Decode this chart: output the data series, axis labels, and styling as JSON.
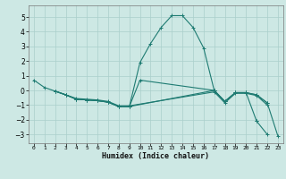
{
  "title": "",
  "xlabel": "Humidex (Indice chaleur)",
  "ylabel": "",
  "background_color": "#cde8e4",
  "grid_color": "#aacfcb",
  "line_color": "#1e7b72",
  "xlim": [
    -0.5,
    23.5
  ],
  "ylim": [
    -3.6,
    5.8
  ],
  "xticks": [
    0,
    1,
    2,
    3,
    4,
    5,
    6,
    7,
    8,
    9,
    10,
    11,
    12,
    13,
    14,
    15,
    16,
    17,
    18,
    19,
    20,
    21,
    22,
    23
  ],
  "yticks": [
    -3,
    -2,
    -1,
    0,
    1,
    2,
    3,
    4,
    5
  ],
  "lines": [
    {
      "x": [
        0,
        1,
        2,
        3,
        4,
        5,
        6,
        7,
        8,
        9,
        10,
        11,
        12,
        13,
        14,
        15,
        16,
        17,
        18,
        19,
        20,
        21
      ],
      "y": [
        0.7,
        0.2,
        -0.05,
        -0.3,
        -0.6,
        -0.65,
        -0.7,
        -0.8,
        -1.1,
        -1.1,
        1.9,
        3.2,
        4.3,
        5.1,
        5.1,
        4.3,
        2.9,
        0.0,
        -0.75,
        -0.15,
        -0.15,
        -2.1
      ]
    },
    {
      "x": [
        21,
        22
      ],
      "y": [
        -2.1,
        -3.0
      ]
    },
    {
      "x": [
        2,
        3,
        4,
        5,
        6,
        7,
        8,
        9,
        10,
        17,
        18,
        19,
        20,
        21,
        22,
        23
      ],
      "y": [
        -0.05,
        -0.3,
        -0.6,
        -0.65,
        -0.7,
        -0.8,
        -1.1,
        -1.1,
        0.7,
        0.0,
        -0.75,
        -0.15,
        -0.15,
        -0.3,
        -0.85,
        -3.1
      ]
    },
    {
      "x": [
        2,
        3,
        4,
        5,
        6,
        7,
        8,
        9,
        17,
        18,
        19,
        20,
        21,
        22
      ],
      "y": [
        -0.05,
        -0.3,
        -0.55,
        -0.6,
        -0.65,
        -0.75,
        -1.05,
        -1.05,
        -0.1,
        -0.85,
        -0.2,
        -0.2,
        -0.35,
        -1.0
      ]
    },
    {
      "x": [
        2,
        3,
        4,
        5,
        6,
        7,
        8,
        9,
        17,
        18,
        19,
        20,
        21,
        22
      ],
      "y": [
        -0.05,
        -0.3,
        -0.6,
        -0.65,
        -0.7,
        -0.8,
        -1.1,
        -1.1,
        0.0,
        -0.75,
        -0.15,
        -0.15,
        -0.3,
        -0.85
      ]
    }
  ]
}
